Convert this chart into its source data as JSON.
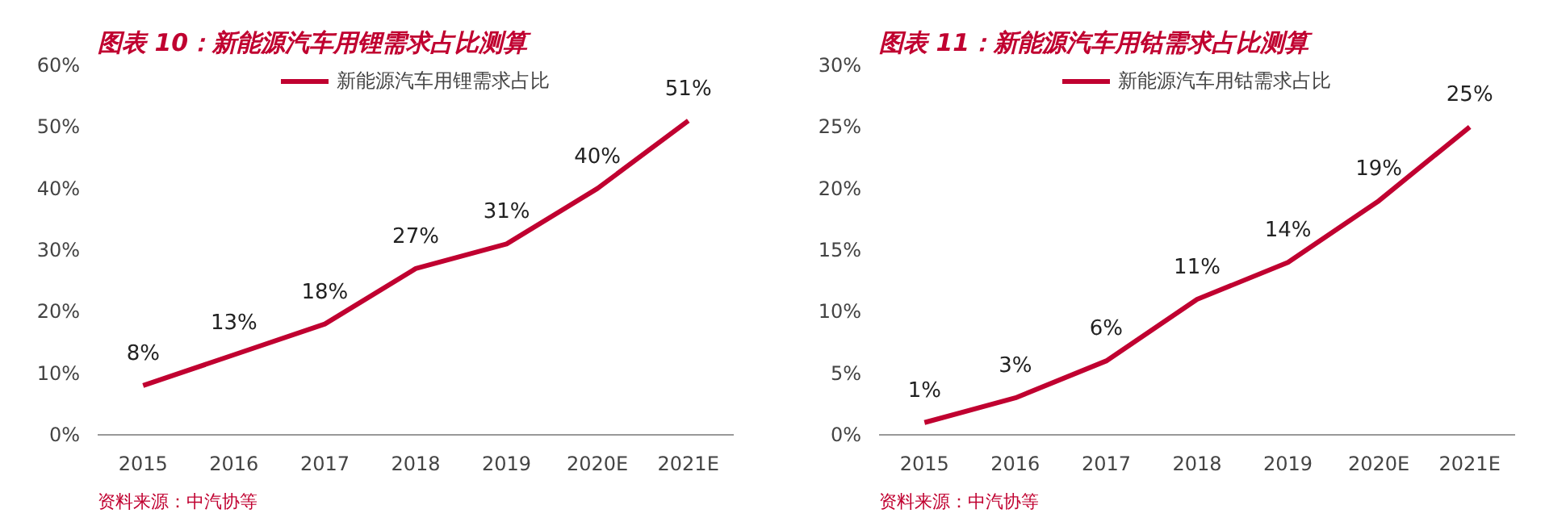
{
  "chart_data": [
    {
      "type": "line",
      "title": "图表 10：新能源汽车用锂需求占比测算",
      "categories": [
        "2015",
        "2016",
        "2017",
        "2018",
        "2019",
        "2020E",
        "2021E"
      ],
      "series": [
        {
          "name": "新能源汽车用锂需求占比",
          "color": "#c00030",
          "values": [
            8,
            13,
            18,
            27,
            31,
            40,
            51
          ]
        }
      ],
      "value_labels": [
        "8%",
        "13%",
        "18%",
        "27%",
        "31%",
        "40%",
        "51%"
      ],
      "ylim": [
        0,
        60
      ],
      "yticks": [
        {
          "value": 0,
          "label": "0%"
        },
        {
          "value": 10,
          "label": "10%"
        },
        {
          "value": 20,
          "label": "20%"
        },
        {
          "value": 30,
          "label": "30%"
        },
        {
          "value": 40,
          "label": "40%"
        },
        {
          "value": 50,
          "label": "50%"
        },
        {
          "value": 60,
          "label": "60%"
        }
      ],
      "grid": false,
      "legend": "top",
      "marker": "none",
      "line_style": "solid",
      "annotations": [
        "资料来源：中汽协等"
      ]
    },
    {
      "type": "line",
      "title": "图表 11：新能源汽车用钴需求占比测算",
      "categories": [
        "2015",
        "2016",
        "2017",
        "2018",
        "2019",
        "2020E",
        "2021E"
      ],
      "series": [
        {
          "name": "新能源汽车用钴需求占比",
          "color": "#c00030",
          "values": [
            1,
            3,
            6,
            11,
            14,
            19,
            25
          ]
        }
      ],
      "value_labels": [
        "1%",
        "3%",
        "6%",
        "11%",
        "14%",
        "19%",
        "25%"
      ],
      "ylim": [
        0,
        30
      ],
      "yticks": [
        {
          "value": 0,
          "label": "0%"
        },
        {
          "value": 5,
          "label": "5%"
        },
        {
          "value": 10,
          "label": "10%"
        },
        {
          "value": 15,
          "label": "15%"
        },
        {
          "value": 20,
          "label": "20%"
        },
        {
          "value": 25,
          "label": "25%"
        },
        {
          "value": 30,
          "label": "30%"
        }
      ],
      "grid": false,
      "legend": "top",
      "marker": "none",
      "line_style": "solid",
      "annotations": [
        "资料来源：中汽协等"
      ]
    }
  ]
}
